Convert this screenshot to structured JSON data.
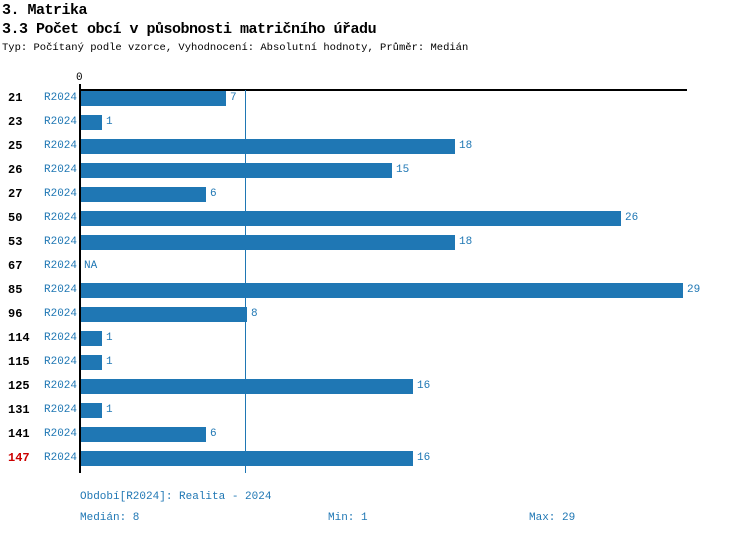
{
  "header": {
    "title": "3. Matrika",
    "subtitle": "3.3 Počet obcí v působnosti matričního úřadu",
    "meta": "Typ: Počítaný podle vzorce, Vyhodnocení: Absolutní hodnoty, Průměr: Medián"
  },
  "chart_data": {
    "type": "bar",
    "orientation": "horizontal",
    "title": "3.3 Počet obcí v působnosti matričního úřadu",
    "series_label": "R2024",
    "axis_zero_label": "0",
    "categories": [
      "21",
      "23",
      "25",
      "26",
      "27",
      "50",
      "53",
      "67",
      "85",
      "96",
      "114",
      "115",
      "125",
      "131",
      "141",
      "147"
    ],
    "values": [
      7,
      1,
      18,
      15,
      6,
      26,
      18,
      null,
      29,
      8,
      1,
      1,
      16,
      1,
      6,
      16
    ],
    "value_labels": [
      "7",
      "1",
      "18",
      "15",
      "6",
      "26",
      "18",
      "NA",
      "29",
      "8",
      "1",
      "1",
      "16",
      "1",
      "6",
      "16"
    ],
    "na_label": "NA",
    "highlighted_category": "147",
    "median_value": 8,
    "min_value": 1,
    "max_value": 29,
    "xlim": [
      0,
      29
    ],
    "grid": false,
    "colors": {
      "bar": "#1f77b4",
      "median_line": "#1f77b4",
      "label": "#000000",
      "highlighted_label": "#cc0000",
      "value_text": "#1f77b4"
    }
  },
  "footer": {
    "period": "Období[R2024]: Realita - 2024",
    "median": "Medián: 8",
    "min": "Min: 1",
    "max": "Max: 29"
  }
}
